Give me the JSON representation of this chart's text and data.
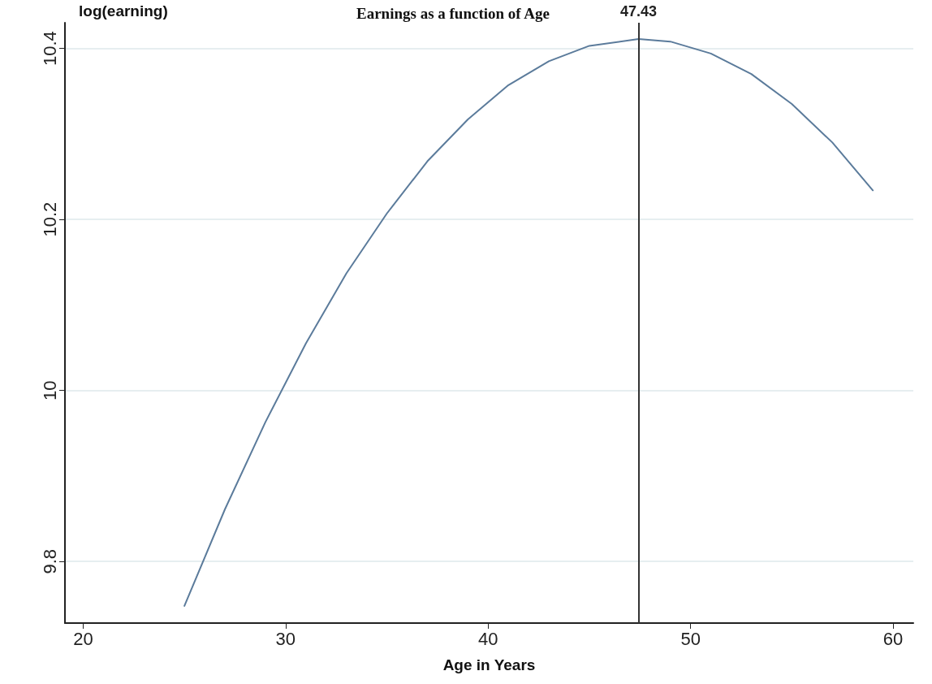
{
  "chart_data": {
    "type": "line",
    "title": "Earnings as a function of Age",
    "xlabel": "Age in Years",
    "ylabel": "log(earning)",
    "x": [
      25,
      27,
      29,
      31,
      33,
      35,
      37,
      39,
      41,
      43,
      45,
      47.43,
      49,
      51,
      53,
      55,
      57,
      59
    ],
    "series": [
      {
        "color": "#5b7b9b",
        "values": [
          9.748,
          9.861,
          9.963,
          10.055,
          10.137,
          10.207,
          10.268,
          10.317,
          10.357,
          10.385,
          10.403,
          10.411,
          10.408,
          10.394,
          10.37,
          10.335,
          10.29,
          10.234
        ]
      }
    ],
    "xlim": [
      19.1,
      61
    ],
    "xticks": [
      20,
      30,
      40,
      50,
      60
    ],
    "ylim": [
      9.728,
      10.43
    ],
    "yticks": [
      9.8,
      10,
      10.2,
      10.4
    ],
    "ref_lines": [
      {
        "axis": "x",
        "value": 47.43,
        "label": "47.43",
        "color": "#333333"
      }
    ],
    "grid": "y",
    "marker": "none",
    "line_style": "solid"
  }
}
